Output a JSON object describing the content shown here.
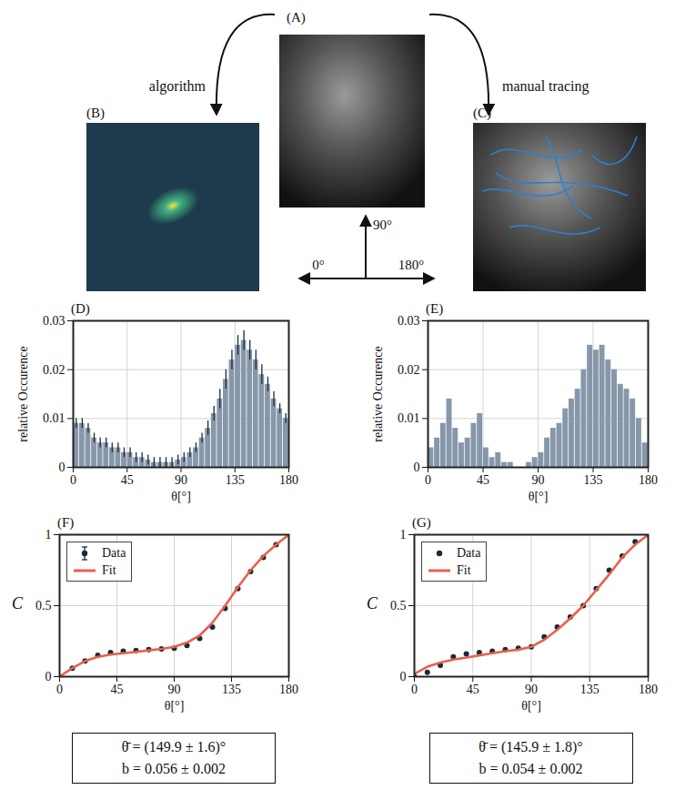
{
  "figure_text": {
    "A": "(A)",
    "B": "(B)",
    "C": "(C)",
    "left_arrow": "algorithm",
    "right_arrow": "manual tracing",
    "compass": {
      "up": "90°",
      "left": "0°",
      "right": "180°"
    }
  },
  "chart_data": [
    {
      "panel": "(D)",
      "type": "histogram",
      "bins": [
        0,
        5,
        10,
        15,
        20,
        25,
        30,
        35,
        40,
        45,
        50,
        55,
        60,
        65,
        70,
        75,
        80,
        85,
        90,
        95,
        100,
        105,
        110,
        115,
        120,
        125,
        130,
        135,
        140,
        145,
        150,
        155,
        160,
        165,
        170,
        175,
        180
      ],
      "counts": [
        0.009,
        0.009,
        0.008,
        0.006,
        0.005,
        0.005,
        0.004,
        0.004,
        0.003,
        0.003,
        0.002,
        0.002,
        0.0015,
        0.001,
        0.001,
        0.001,
        0.001,
        0.0015,
        0.002,
        0.003,
        0.004,
        0.006,
        0.008,
        0.011,
        0.014,
        0.018,
        0.022,
        0.025,
        0.026,
        0.024,
        0.022,
        0.019,
        0.017,
        0.014,
        0.012,
        0.01
      ],
      "errors": [
        0.001,
        0.001,
        0.001,
        0.001,
        0.001,
        0.001,
        0.001,
        0.001,
        0.001,
        0.001,
        0.001,
        0.001,
        0.001,
        0.001,
        0.001,
        0.001,
        0.001,
        0.001,
        0.001,
        0.001,
        0.001,
        0.001,
        0.0015,
        0.0015,
        0.002,
        0.002,
        0.002,
        0.002,
        0.002,
        0.002,
        0.002,
        0.002,
        0.0015,
        0.0015,
        0.001,
        0.001
      ],
      "color": "#8797aa",
      "x_label": "θ[°]",
      "y_label": "relative Occurence",
      "xlim": [
        0,
        180
      ],
      "ylim": [
        0,
        0.03
      ],
      "xticks": [
        0,
        45,
        90,
        135,
        180
      ],
      "yticks": [
        0,
        0.01,
        0.02,
        0.03
      ],
      "grid": true
    },
    {
      "panel": "(E)",
      "type": "histogram",
      "bins": [
        0,
        5,
        10,
        15,
        20,
        25,
        30,
        35,
        40,
        45,
        50,
        55,
        60,
        65,
        70,
        75,
        80,
        85,
        90,
        95,
        100,
        105,
        110,
        115,
        120,
        125,
        130,
        135,
        140,
        145,
        150,
        155,
        160,
        165,
        170,
        175,
        180
      ],
      "counts": [
        0.004,
        0.006,
        0.009,
        0.014,
        0.008,
        0.005,
        0.006,
        0.009,
        0.011,
        0.004,
        0.002,
        0.003,
        0.001,
        0.001,
        0,
        0,
        0.001,
        0.002,
        0.003,
        0.006,
        0.008,
        0.009,
        0.012,
        0.014,
        0.016,
        0.02,
        0.025,
        0.024,
        0.025,
        0.022,
        0.02,
        0.017,
        0.016,
        0.014,
        0.01,
        0.005
      ],
      "color": "#8797aa",
      "x_label": "θ[°]",
      "y_label": "relative Occurence",
      "xlim": [
        0,
        180
      ],
      "ylim": [
        0,
        0.03
      ],
      "xticks": [
        0,
        45,
        90,
        135,
        180
      ],
      "yticks": [
        0,
        0.01,
        0.02,
        0.03
      ],
      "grid": true
    },
    {
      "panel": "(F)",
      "type": "line",
      "x": [
        0,
        10,
        20,
        30,
        40,
        50,
        60,
        70,
        80,
        90,
        100,
        110,
        120,
        130,
        140,
        150,
        160,
        170,
        180
      ],
      "series": [
        {
          "name": "Data",
          "type": "scatter",
          "marker": "circle",
          "color": "#1b2a3a",
          "values": [
            0,
            0.06,
            0.11,
            0.15,
            0.17,
            0.18,
            0.185,
            0.19,
            0.195,
            0.2,
            0.22,
            0.27,
            0.35,
            0.48,
            0.62,
            0.74,
            0.84,
            0.93,
            1
          ],
          "errors": [
            0.01,
            0.01,
            0.01,
            0.01,
            0.01,
            0.01,
            0.01,
            0.01,
            0.01,
            0.01,
            0.01,
            0.01,
            0.01,
            0.01,
            0.01,
            0.01,
            0.01,
            0.01,
            0.01
          ]
        },
        {
          "name": "Fit",
          "type": "line",
          "color": "#e8604c",
          "values": [
            0,
            0.06,
            0.11,
            0.14,
            0.155,
            0.165,
            0.175,
            0.185,
            0.195,
            0.21,
            0.24,
            0.29,
            0.38,
            0.5,
            0.63,
            0.75,
            0.85,
            0.93,
            1
          ]
        }
      ],
      "x_label": "θ[°]",
      "y_label": "C",
      "xlim": [
        0,
        180
      ],
      "ylim": [
        0,
        1
      ],
      "xticks": [
        0,
        45,
        90,
        135,
        180
      ],
      "yticks": [
        0,
        0.5,
        1
      ],
      "grid": true,
      "legend": "top-left",
      "annotation": [
        "θ̄ = (149.9 ± 1.6)°",
        "b = 0.056 ± 0.002"
      ]
    },
    {
      "panel": "(G)",
      "type": "line",
      "x": [
        0,
        10,
        20,
        30,
        40,
        50,
        60,
        70,
        80,
        90,
        100,
        110,
        120,
        130,
        140,
        150,
        160,
        170,
        180
      ],
      "series": [
        {
          "name": "Data",
          "type": "scatter",
          "marker": "circle",
          "color": "#1b2a3a",
          "values": [
            0,
            0.03,
            0.08,
            0.14,
            0.16,
            0.17,
            0.18,
            0.19,
            0.2,
            0.21,
            0.28,
            0.35,
            0.42,
            0.5,
            0.62,
            0.75,
            0.85,
            0.95,
            1
          ]
        },
        {
          "name": "Fit",
          "type": "line",
          "color": "#e8604c",
          "values": [
            0.02,
            0.07,
            0.1,
            0.12,
            0.135,
            0.15,
            0.165,
            0.18,
            0.19,
            0.21,
            0.26,
            0.33,
            0.41,
            0.5,
            0.61,
            0.72,
            0.84,
            0.93,
            1
          ]
        }
      ],
      "x_label": "θ[°]",
      "y_label": "C",
      "xlim": [
        0,
        180
      ],
      "ylim": [
        0,
        1
      ],
      "xticks": [
        0,
        45,
        90,
        135,
        180
      ],
      "yticks": [
        0,
        0.5,
        1
      ],
      "grid": true,
      "legend": "top-left",
      "annotation": [
        "θ̄ = (145.9 ± 1.8)°",
        "b = 0.054 ± 0.002"
      ]
    }
  ]
}
